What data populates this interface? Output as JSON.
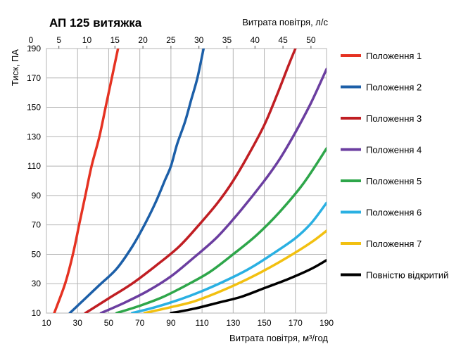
{
  "chart_data": {
    "type": "line",
    "title": "АП 125 витяжка",
    "ylabel": "Тиск, ПА",
    "xlabel_bottom": "Витрата повітря, м³/год",
    "xlabel_top": "Витрата повітря, л/с",
    "xlim": [
      10,
      190
    ],
    "ylim": [
      10,
      190
    ],
    "x_ticks_bottom": [
      10,
      30,
      50,
      70,
      90,
      110,
      130,
      150,
      170,
      190
    ],
    "x_ticks_top": [
      0,
      5,
      10,
      15,
      20,
      25,
      30,
      35,
      40,
      45,
      50
    ],
    "y_ticks": [
      10,
      30,
      50,
      70,
      90,
      110,
      130,
      150,
      170,
      190
    ],
    "grid": true,
    "legend_position": "right",
    "series": [
      {
        "name": "Положення 1",
        "color": "#e53222",
        "points": [
          [
            15,
            10
          ],
          [
            22,
            30
          ],
          [
            27,
            50
          ],
          [
            31,
            70
          ],
          [
            35,
            90
          ],
          [
            39,
            110
          ],
          [
            44,
            130
          ],
          [
            48,
            150
          ],
          [
            52,
            170
          ],
          [
            56,
            190
          ]
        ]
      },
      {
        "name": "Положення 2",
        "color": "#1c5fa8",
        "points": [
          [
            25,
            10
          ],
          [
            35,
            20
          ],
          [
            45,
            30
          ],
          [
            55,
            40
          ],
          [
            65,
            55
          ],
          [
            73,
            70
          ],
          [
            80,
            85
          ],
          [
            86,
            100
          ],
          [
            90,
            110
          ],
          [
            94,
            125
          ],
          [
            99,
            140
          ],
          [
            103,
            155
          ],
          [
            107,
            170
          ],
          [
            111,
            190
          ]
        ]
      },
      {
        "name": "Положення 3",
        "color": "#c01e23",
        "points": [
          [
            35,
            10
          ],
          [
            50,
            20
          ],
          [
            65,
            30
          ],
          [
            80,
            42
          ],
          [
            95,
            55
          ],
          [
            108,
            70
          ],
          [
            120,
            85
          ],
          [
            130,
            100
          ],
          [
            140,
            118
          ],
          [
            150,
            138
          ],
          [
            158,
            158
          ],
          [
            165,
            177
          ],
          [
            170,
            190
          ]
        ]
      },
      {
        "name": "Положення 4",
        "color": "#6b3ea0",
        "points": [
          [
            45,
            10
          ],
          [
            60,
            17
          ],
          [
            75,
            25
          ],
          [
            90,
            35
          ],
          [
            105,
            48
          ],
          [
            120,
            62
          ],
          [
            135,
            80
          ],
          [
            150,
            100
          ],
          [
            160,
            115
          ],
          [
            170,
            133
          ],
          [
            180,
            153
          ],
          [
            190,
            176
          ]
        ]
      },
      {
        "name": "Положення 5",
        "color": "#2ea64a",
        "points": [
          [
            55,
            10
          ],
          [
            70,
            15
          ],
          [
            85,
            21
          ],
          [
            100,
            29
          ],
          [
            115,
            38
          ],
          [
            130,
            50
          ],
          [
            145,
            63
          ],
          [
            160,
            79
          ],
          [
            175,
            98
          ],
          [
            190,
            122
          ]
        ]
      },
      {
        "name": "Положення 6",
        "color": "#2ab0e2",
        "points": [
          [
            65,
            10
          ],
          [
            80,
            14
          ],
          [
            95,
            19
          ],
          [
            110,
            25
          ],
          [
            125,
            32
          ],
          [
            140,
            40
          ],
          [
            155,
            50
          ],
          [
            170,
            61
          ],
          [
            180,
            71
          ],
          [
            190,
            85
          ]
        ]
      },
      {
        "name": "Положення 7",
        "color": "#f2c010",
        "points": [
          [
            73,
            10
          ],
          [
            90,
            14
          ],
          [
            105,
            18
          ],
          [
            120,
            24
          ],
          [
            135,
            31
          ],
          [
            150,
            39
          ],
          [
            165,
            48
          ],
          [
            180,
            58
          ],
          [
            190,
            66
          ]
        ]
      },
      {
        "name": "Повністю відкритий",
        "color": "#000000",
        "points": [
          [
            90,
            10
          ],
          [
            105,
            13
          ],
          [
            120,
            17
          ],
          [
            135,
            21
          ],
          [
            150,
            27
          ],
          [
            165,
            33
          ],
          [
            180,
            40
          ],
          [
            190,
            46
          ]
        ]
      }
    ]
  }
}
